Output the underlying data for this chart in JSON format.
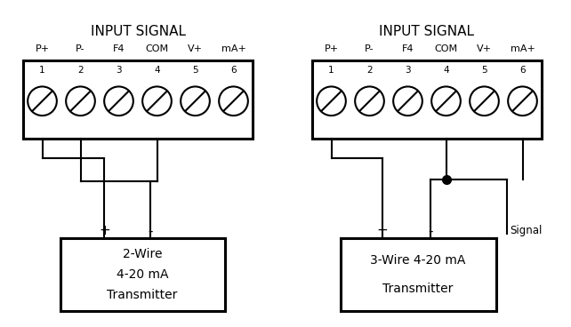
{
  "bg_color": "#ffffff",
  "line_color": "#000000",
  "title": "INPUT SIGNAL",
  "labels": [
    "P+",
    "P-",
    "F4",
    "COM",
    "V+",
    "mA+"
  ],
  "numbers": [
    "1",
    "2",
    "3",
    "4",
    "5",
    "6"
  ],
  "left_transmitter_lines": [
    "2-Wire",
    "4-20 mA",
    "Transmitter"
  ],
  "right_transmitter_lines": [
    "3-Wire 4-20 mA",
    "Transmitter"
  ],
  "signal_label": "Signal",
  "plus_label": "+",
  "minus_label": "-",
  "lw_thin": 1.5,
  "lw_thick": 2.0,
  "lw_border": 2.2
}
